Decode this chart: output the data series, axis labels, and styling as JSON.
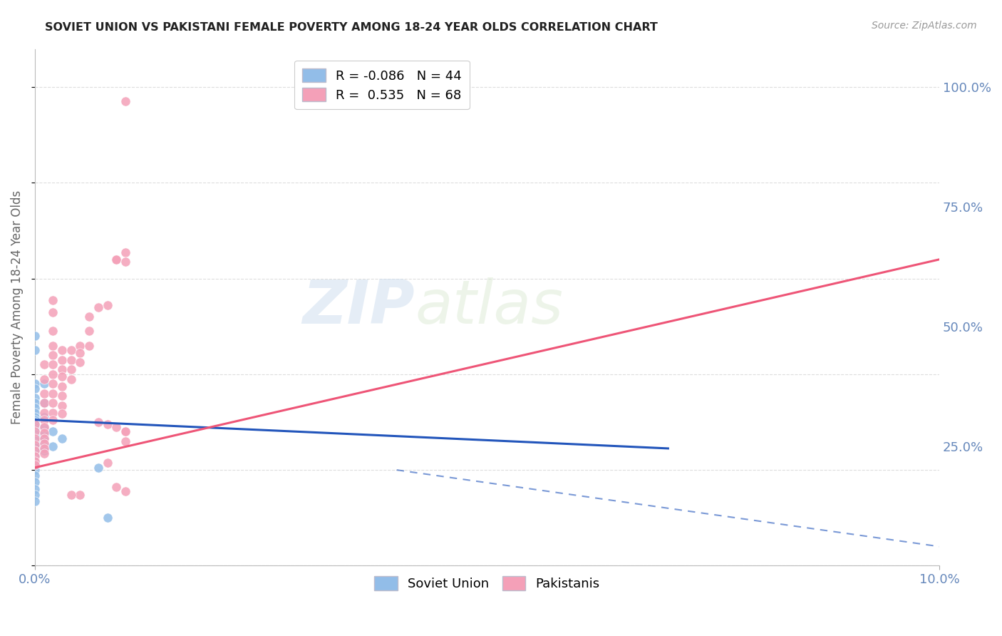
{
  "title": "SOVIET UNION VS PAKISTANI FEMALE POVERTY AMONG 18-24 YEAR OLDS CORRELATION CHART",
  "source": "Source: ZipAtlas.com",
  "ylabel": "Female Poverty Among 18-24 Year Olds",
  "watermark_zip": "ZIP",
  "watermark_atlas": "atlas",
  "soviet_color": "#92bde8",
  "soviet_edge_color": "#6699cc",
  "pakistani_color": "#f4a0b8",
  "pakistani_edge_color": "#e06080",
  "soviet_line_color": "#2255bb",
  "pakistani_line_color": "#ee5577",
  "background_color": "#ffffff",
  "grid_color": "#dddddd",
  "title_color": "#222222",
  "axis_tick_color": "#6688bb",
  "ylabel_color": "#666666",
  "legend_R1": "R = -0.086",
  "legend_N1": "N = 44",
  "legend_R2": "R =  0.535",
  "legend_N2": "N = 68",
  "xmin": 0.0,
  "xmax": 0.1,
  "ymin": 0.0,
  "ymax": 1.08,
  "ytick_vals": [
    0.0,
    0.25,
    0.5,
    0.75,
    1.0
  ],
  "ytick_labels": [
    "",
    "25.0%",
    "50.0%",
    "75.0%",
    "100.0%"
  ],
  "xtick_vals": [
    0.0,
    0.1
  ],
  "xtick_labels": [
    "0.0%",
    "10.0%"
  ],
  "soviet_points": [
    [
      0.0,
      0.48
    ],
    [
      0.0,
      0.45
    ],
    [
      0.0,
      0.38
    ],
    [
      0.0,
      0.37
    ],
    [
      0.0,
      0.35
    ],
    [
      0.0,
      0.34
    ],
    [
      0.0,
      0.33
    ],
    [
      0.0,
      0.32
    ],
    [
      0.0,
      0.31
    ],
    [
      0.0,
      0.305
    ],
    [
      0.0,
      0.3
    ],
    [
      0.0,
      0.295
    ],
    [
      0.0,
      0.29
    ],
    [
      0.0,
      0.285
    ],
    [
      0.0,
      0.28
    ],
    [
      0.0,
      0.275
    ],
    [
      0.0,
      0.268
    ],
    [
      0.0,
      0.262
    ],
    [
      0.0,
      0.255
    ],
    [
      0.0,
      0.248
    ],
    [
      0.0,
      0.24
    ],
    [
      0.0,
      0.23
    ],
    [
      0.0,
      0.22
    ],
    [
      0.0,
      0.21
    ],
    [
      0.0,
      0.2
    ],
    [
      0.0,
      0.188
    ],
    [
      0.0,
      0.175
    ],
    [
      0.0,
      0.16
    ],
    [
      0.0,
      0.148
    ],
    [
      0.0,
      0.135
    ],
    [
      0.001,
      0.38
    ],
    [
      0.001,
      0.34
    ],
    [
      0.001,
      0.31
    ],
    [
      0.001,
      0.29
    ],
    [
      0.001,
      0.275
    ],
    [
      0.001,
      0.265
    ],
    [
      0.001,
      0.255
    ],
    [
      0.001,
      0.248
    ],
    [
      0.001,
      0.24
    ],
    [
      0.002,
      0.28
    ],
    [
      0.002,
      0.25
    ],
    [
      0.003,
      0.265
    ],
    [
      0.007,
      0.205
    ],
    [
      0.008,
      0.1
    ]
  ],
  "pakistani_points": [
    [
      0.0,
      0.295
    ],
    [
      0.0,
      0.28
    ],
    [
      0.0,
      0.265
    ],
    [
      0.0,
      0.252
    ],
    [
      0.0,
      0.24
    ],
    [
      0.0,
      0.228
    ],
    [
      0.0,
      0.218
    ],
    [
      0.0,
      0.21
    ],
    [
      0.001,
      0.42
    ],
    [
      0.001,
      0.39
    ],
    [
      0.001,
      0.36
    ],
    [
      0.001,
      0.34
    ],
    [
      0.001,
      0.32
    ],
    [
      0.001,
      0.305
    ],
    [
      0.001,
      0.29
    ],
    [
      0.001,
      0.278
    ],
    [
      0.001,
      0.265
    ],
    [
      0.001,
      0.255
    ],
    [
      0.001,
      0.245
    ],
    [
      0.001,
      0.235
    ],
    [
      0.002,
      0.555
    ],
    [
      0.002,
      0.53
    ],
    [
      0.002,
      0.49
    ],
    [
      0.002,
      0.46
    ],
    [
      0.002,
      0.44
    ],
    [
      0.002,
      0.42
    ],
    [
      0.002,
      0.4
    ],
    [
      0.002,
      0.38
    ],
    [
      0.002,
      0.36
    ],
    [
      0.002,
      0.34
    ],
    [
      0.002,
      0.32
    ],
    [
      0.002,
      0.305
    ],
    [
      0.003,
      0.45
    ],
    [
      0.003,
      0.43
    ],
    [
      0.003,
      0.41
    ],
    [
      0.003,
      0.395
    ],
    [
      0.003,
      0.375
    ],
    [
      0.003,
      0.355
    ],
    [
      0.003,
      0.335
    ],
    [
      0.003,
      0.318
    ],
    [
      0.004,
      0.45
    ],
    [
      0.004,
      0.43
    ],
    [
      0.004,
      0.41
    ],
    [
      0.004,
      0.39
    ],
    [
      0.005,
      0.46
    ],
    [
      0.005,
      0.445
    ],
    [
      0.005,
      0.425
    ],
    [
      0.006,
      0.52
    ],
    [
      0.006,
      0.49
    ],
    [
      0.006,
      0.46
    ],
    [
      0.007,
      0.54
    ],
    [
      0.007,
      0.3
    ],
    [
      0.008,
      0.545
    ],
    [
      0.008,
      0.295
    ],
    [
      0.009,
      0.64
    ],
    [
      0.009,
      0.64
    ],
    [
      0.009,
      0.29
    ],
    [
      0.01,
      0.655
    ],
    [
      0.01,
      0.28
    ],
    [
      0.01,
      0.26
    ],
    [
      0.009,
      0.165
    ],
    [
      0.005,
      0.148
    ],
    [
      0.01,
      0.97
    ],
    [
      0.01,
      0.155
    ],
    [
      0.01,
      0.635
    ],
    [
      0.01,
      0.28
    ],
    [
      0.008,
      0.215
    ],
    [
      0.004,
      0.148
    ]
  ],
  "soviet_trend": [
    0.0,
    0.07,
    0.305,
    0.245
  ],
  "soviet_extrap": [
    0.04,
    0.1,
    0.2,
    0.04
  ],
  "pakistani_trend": [
    0.0,
    0.1,
    0.205,
    0.64
  ]
}
